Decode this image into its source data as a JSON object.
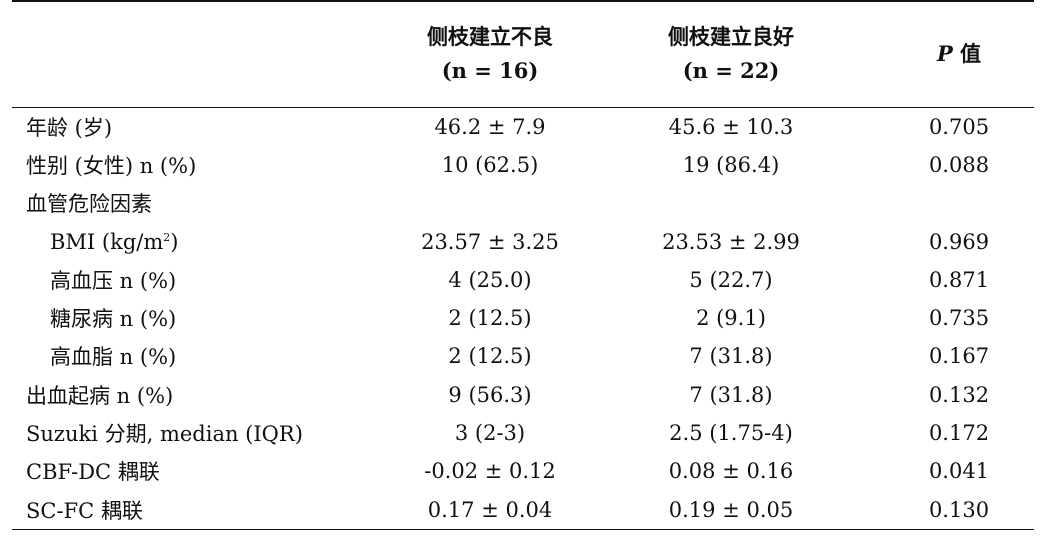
{
  "header": {
    "col_label": "",
    "group1_title": "侧枝建立不良",
    "group1_n": "(n = 16)",
    "group2_title": "侧枝建立良好",
    "group2_n": "(n = 22)",
    "p_letter": "P",
    "p_suffix": " 值"
  },
  "rows": [
    {
      "label": "年龄 (岁)",
      "indent": false,
      "g1": "46.2 ± 7.9",
      "g2": "45.6 ± 10.3",
      "p": "0.705"
    },
    {
      "label": "性别 (女性) n (%)",
      "indent": false,
      "g1": "10 (62.5)",
      "g2": "19 (86.4)",
      "p": "0.088"
    },
    {
      "label": "血管危险因素",
      "indent": false,
      "g1": "",
      "g2": "",
      "p": ""
    },
    {
      "label": "BMI (kg/m",
      "label_sup": "2",
      "label_tail": ")",
      "indent": true,
      "g1": "23.57 ± 3.25",
      "g2": "23.53 ± 2.99",
      "p": "0.969"
    },
    {
      "label": "高血压 n (%)",
      "indent": true,
      "g1": "4 (25.0)",
      "g2": "5 (22.7)",
      "p": "0.871"
    },
    {
      "label": "糖尿病 n (%)",
      "indent": true,
      "g1": "2 (12.5)",
      "g2": "2 (9.1)",
      "p": "0.735"
    },
    {
      "label": "高血脂 n (%)",
      "indent": true,
      "g1": "2 (12.5)",
      "g2": "7 (31.8)",
      "p": "0.167"
    },
    {
      "label": "出血起病 n (%)",
      "indent": false,
      "g1": "9 (56.3)",
      "g2": "7 (31.8)",
      "p": "0.132"
    },
    {
      "label": "Suzuki 分期, median (IQR)",
      "indent": false,
      "g1": "3 (2-3)",
      "g2": "2.5 (1.75-4)",
      "p": "0.172"
    },
    {
      "label": "CBF-DC 耦联",
      "indent": false,
      "g1": "-0.02 ± 0.12",
      "g2": "0.08 ± 0.16",
      "p": "0.041"
    },
    {
      "label": "SC-FC 耦联",
      "indent": false,
      "g1": "0.17 ± 0.04",
      "g2": "0.19 ± 0.05",
      "p": "0.130"
    }
  ]
}
